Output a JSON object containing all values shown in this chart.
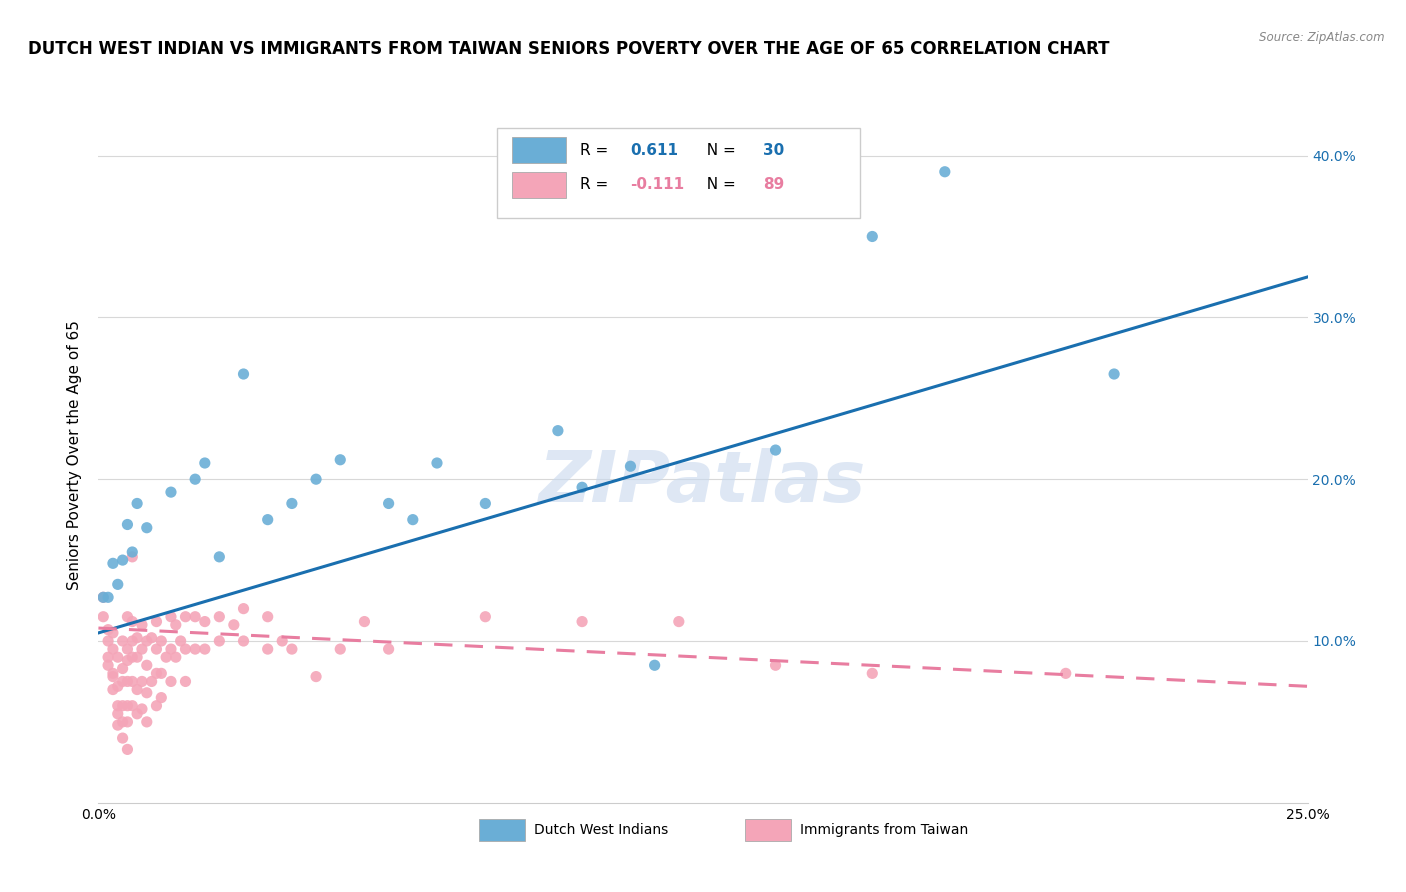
{
  "title": "DUTCH WEST INDIAN VS IMMIGRANTS FROM TAIWAN SENIORS POVERTY OVER THE AGE OF 65 CORRELATION CHART",
  "source": "Source: ZipAtlas.com",
  "ylabel": "Seniors Poverty Over the Age of 65",
  "xlim": [
    0.0,
    0.25
  ],
  "ylim": [
    0.0,
    0.43
  ],
  "yticks": [
    0.1,
    0.2,
    0.3,
    0.4
  ],
  "ytick_labels": [
    "10.0%",
    "20.0%",
    "30.0%",
    "40.0%"
  ],
  "xticks": [
    0.0,
    0.05,
    0.1,
    0.15,
    0.2,
    0.25
  ],
  "xtick_labels": [
    "0.0%",
    "",
    "",
    "",
    "",
    "25.0%"
  ],
  "watermark": "ZIPatlas",
  "legend1_label": "Dutch West Indians",
  "legend2_label": "Immigrants from Taiwan",
  "r1": 0.611,
  "n1": 30,
  "r2": -0.111,
  "n2": 89,
  "blue_color": "#6aaed6",
  "pink_color": "#f4a5b8",
  "blue_line_color": "#1a6faf",
  "pink_line_color": "#e87da0",
  "blue_scatter": [
    [
      0.001,
      0.127
    ],
    [
      0.002,
      0.127
    ],
    [
      0.003,
      0.148
    ],
    [
      0.004,
      0.135
    ],
    [
      0.005,
      0.15
    ],
    [
      0.006,
      0.172
    ],
    [
      0.007,
      0.155
    ],
    [
      0.008,
      0.185
    ],
    [
      0.01,
      0.17
    ],
    [
      0.015,
      0.192
    ],
    [
      0.02,
      0.2
    ],
    [
      0.022,
      0.21
    ],
    [
      0.025,
      0.152
    ],
    [
      0.03,
      0.265
    ],
    [
      0.035,
      0.175
    ],
    [
      0.04,
      0.185
    ],
    [
      0.045,
      0.2
    ],
    [
      0.05,
      0.212
    ],
    [
      0.06,
      0.185
    ],
    [
      0.065,
      0.175
    ],
    [
      0.07,
      0.21
    ],
    [
      0.08,
      0.185
    ],
    [
      0.095,
      0.23
    ],
    [
      0.1,
      0.195
    ],
    [
      0.11,
      0.208
    ],
    [
      0.115,
      0.085
    ],
    [
      0.14,
      0.218
    ],
    [
      0.16,
      0.35
    ],
    [
      0.175,
      0.39
    ],
    [
      0.21,
      0.265
    ]
  ],
  "pink_scatter": [
    [
      0.001,
      0.127
    ],
    [
      0.001,
      0.115
    ],
    [
      0.002,
      0.1
    ],
    [
      0.002,
      0.09
    ],
    [
      0.002,
      0.107
    ],
    [
      0.002,
      0.085
    ],
    [
      0.003,
      0.078
    ],
    [
      0.003,
      0.095
    ],
    [
      0.003,
      0.07
    ],
    [
      0.003,
      0.08
    ],
    [
      0.003,
      0.105
    ],
    [
      0.004,
      0.09
    ],
    [
      0.004,
      0.072
    ],
    [
      0.004,
      0.06
    ],
    [
      0.004,
      0.055
    ],
    [
      0.004,
      0.048
    ],
    [
      0.005,
      0.083
    ],
    [
      0.005,
      0.075
    ],
    [
      0.005,
      0.1
    ],
    [
      0.005,
      0.06
    ],
    [
      0.005,
      0.05
    ],
    [
      0.005,
      0.04
    ],
    [
      0.006,
      0.115
    ],
    [
      0.006,
      0.095
    ],
    [
      0.006,
      0.088
    ],
    [
      0.006,
      0.075
    ],
    [
      0.006,
      0.06
    ],
    [
      0.006,
      0.05
    ],
    [
      0.006,
      0.033
    ],
    [
      0.007,
      0.152
    ],
    [
      0.007,
      0.112
    ],
    [
      0.007,
      0.1
    ],
    [
      0.007,
      0.09
    ],
    [
      0.007,
      0.075
    ],
    [
      0.007,
      0.06
    ],
    [
      0.008,
      0.102
    ],
    [
      0.008,
      0.09
    ],
    [
      0.008,
      0.07
    ],
    [
      0.008,
      0.055
    ],
    [
      0.009,
      0.11
    ],
    [
      0.009,
      0.095
    ],
    [
      0.009,
      0.075
    ],
    [
      0.009,
      0.058
    ],
    [
      0.01,
      0.1
    ],
    [
      0.01,
      0.085
    ],
    [
      0.01,
      0.068
    ],
    [
      0.01,
      0.05
    ],
    [
      0.011,
      0.102
    ],
    [
      0.011,
      0.075
    ],
    [
      0.012,
      0.112
    ],
    [
      0.012,
      0.095
    ],
    [
      0.012,
      0.08
    ],
    [
      0.012,
      0.06
    ],
    [
      0.013,
      0.1
    ],
    [
      0.013,
      0.08
    ],
    [
      0.013,
      0.065
    ],
    [
      0.014,
      0.09
    ],
    [
      0.015,
      0.115
    ],
    [
      0.015,
      0.095
    ],
    [
      0.015,
      0.075
    ],
    [
      0.016,
      0.11
    ],
    [
      0.016,
      0.09
    ],
    [
      0.017,
      0.1
    ],
    [
      0.018,
      0.115
    ],
    [
      0.018,
      0.095
    ],
    [
      0.018,
      0.075
    ],
    [
      0.02,
      0.115
    ],
    [
      0.02,
      0.095
    ],
    [
      0.022,
      0.112
    ],
    [
      0.022,
      0.095
    ],
    [
      0.025,
      0.115
    ],
    [
      0.025,
      0.1
    ],
    [
      0.028,
      0.11
    ],
    [
      0.03,
      0.12
    ],
    [
      0.03,
      0.1
    ],
    [
      0.035,
      0.115
    ],
    [
      0.035,
      0.095
    ],
    [
      0.038,
      0.1
    ],
    [
      0.04,
      0.095
    ],
    [
      0.045,
      0.078
    ],
    [
      0.05,
      0.095
    ],
    [
      0.055,
      0.112
    ],
    [
      0.06,
      0.095
    ],
    [
      0.08,
      0.115
    ],
    [
      0.1,
      0.112
    ],
    [
      0.12,
      0.112
    ],
    [
      0.14,
      0.085
    ],
    [
      0.16,
      0.08
    ],
    [
      0.2,
      0.08
    ]
  ],
  "blue_line_x": [
    0.0,
    0.25
  ],
  "blue_line_y": [
    0.105,
    0.325
  ],
  "pink_line_x": [
    0.0,
    0.25
  ],
  "pink_line_y": [
    0.108,
    0.072
  ],
  "title_fontsize": 12,
  "axis_label_fontsize": 11,
  "tick_fontsize": 10,
  "watermark_fontsize": 52,
  "watermark_color": "#c8d8ee",
  "watermark_alpha": 0.6
}
